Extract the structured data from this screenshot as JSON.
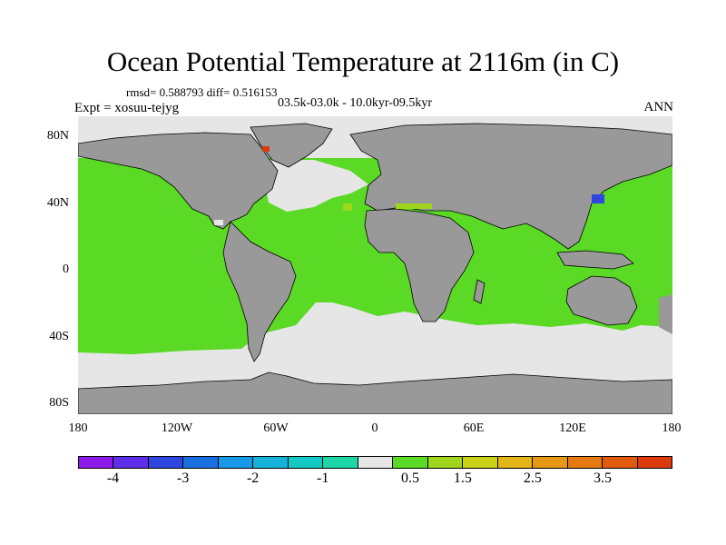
{
  "header": {
    "title": "Ocean Potential Temperature at 2116m (in C)",
    "stats": "rmsd= 0.588793 diff= 0.516153",
    "experiment": "Expt = xosuu-tejyg",
    "period": "03.5k-03.0k - 10.0kyr-09.5kyr",
    "season": "ANN"
  },
  "axes": {
    "lat_ticks": [
      "80N",
      "40N",
      "0",
      "40S",
      "80S"
    ],
    "lon_ticks": [
      "180",
      "120W",
      "60W",
      "0",
      "60E",
      "120E",
      "180"
    ]
  },
  "colors": {
    "land": "#999999",
    "near_zero": "#e6e6e6",
    "positive_main": "#5ad925",
    "coast": "#000000"
  },
  "colorbar": {
    "colors": [
      "#8c1ae8",
      "#5f2ee8",
      "#2f47e0",
      "#1c6fe0",
      "#1799e8",
      "#15b3d9",
      "#14c8c4",
      "#1cd6a8",
      "#e6e6e6",
      "#5ad925",
      "#9fd61c",
      "#c9d219",
      "#e3b517",
      "#e69714",
      "#e47a11",
      "#e05a0f",
      "#dc3a0d"
    ],
    "labels": [
      "-4",
      "-3",
      "-2",
      "-1",
      "0.5",
      "1.5",
      "2.5",
      "3.5"
    ]
  }
}
